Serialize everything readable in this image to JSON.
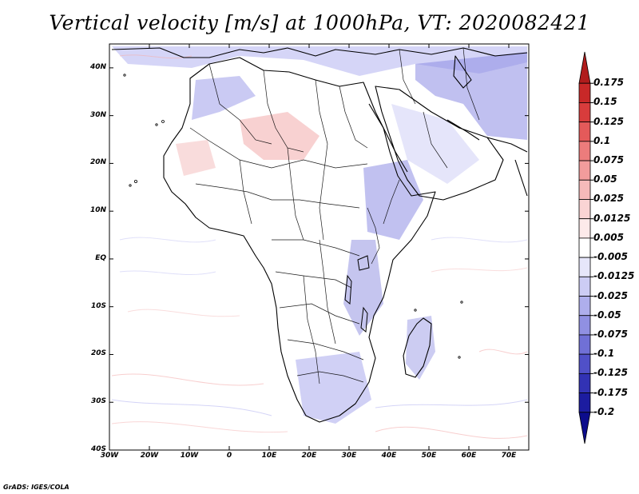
{
  "title": "Vertical velocity [m/s] at 1000hPa, VT: 2020082421",
  "credit": "GrADS: IGES/COLA",
  "map": {
    "lat_ticks": [
      {
        "value": 40,
        "label": "40N"
      },
      {
        "value": 30,
        "label": "30N"
      },
      {
        "value": 20,
        "label": "20N"
      },
      {
        "value": 10,
        "label": "10N"
      },
      {
        "value": 0,
        "label": "EQ"
      },
      {
        "value": -10,
        "label": "10S"
      },
      {
        "value": -20,
        "label": "20S"
      },
      {
        "value": -30,
        "label": "30S"
      },
      {
        "value": -40,
        "label": "40S"
      }
    ],
    "lon_ticks": [
      {
        "value": -30,
        "label": "30W"
      },
      {
        "value": -20,
        "label": "20W"
      },
      {
        "value": -10,
        "label": "10W"
      },
      {
        "value": 0,
        "label": "0"
      },
      {
        "value": 10,
        "label": "10E"
      },
      {
        "value": 20,
        "label": "20E"
      },
      {
        "value": 30,
        "label": "30E"
      },
      {
        "value": 40,
        "label": "40E"
      },
      {
        "value": 50,
        "label": "50E"
      },
      {
        "value": 60,
        "label": "60E"
      },
      {
        "value": 70,
        "label": "70E"
      }
    ],
    "lat_range": [
      -40,
      45
    ],
    "lon_range": [
      -30,
      75
    ]
  },
  "colorbar": {
    "labels": [
      "0.175",
      "0.15",
      "0.125",
      "0.1",
      "0.075",
      "0.05",
      "0.025",
      "0.0125",
      "0.005",
      "-0.005",
      "-0.0125",
      "-0.025",
      "-0.05",
      "-0.075",
      "-0.1",
      "-0.125",
      "-0.175",
      "-0.2"
    ],
    "colors": [
      "#b01c1c",
      "#c82828",
      "#d83c3c",
      "#e45a5a",
      "#ec7c7c",
      "#f29c9c",
      "#f6baba",
      "#fad4d4",
      "#fdeaea",
      "#ffffff",
      "#e6e6fa",
      "#ccccf4",
      "#aeaeec",
      "#9090e2",
      "#7070d6",
      "#5050c8",
      "#3232b4",
      "#1c1ca0",
      "#0c0c8c"
    ]
  }
}
